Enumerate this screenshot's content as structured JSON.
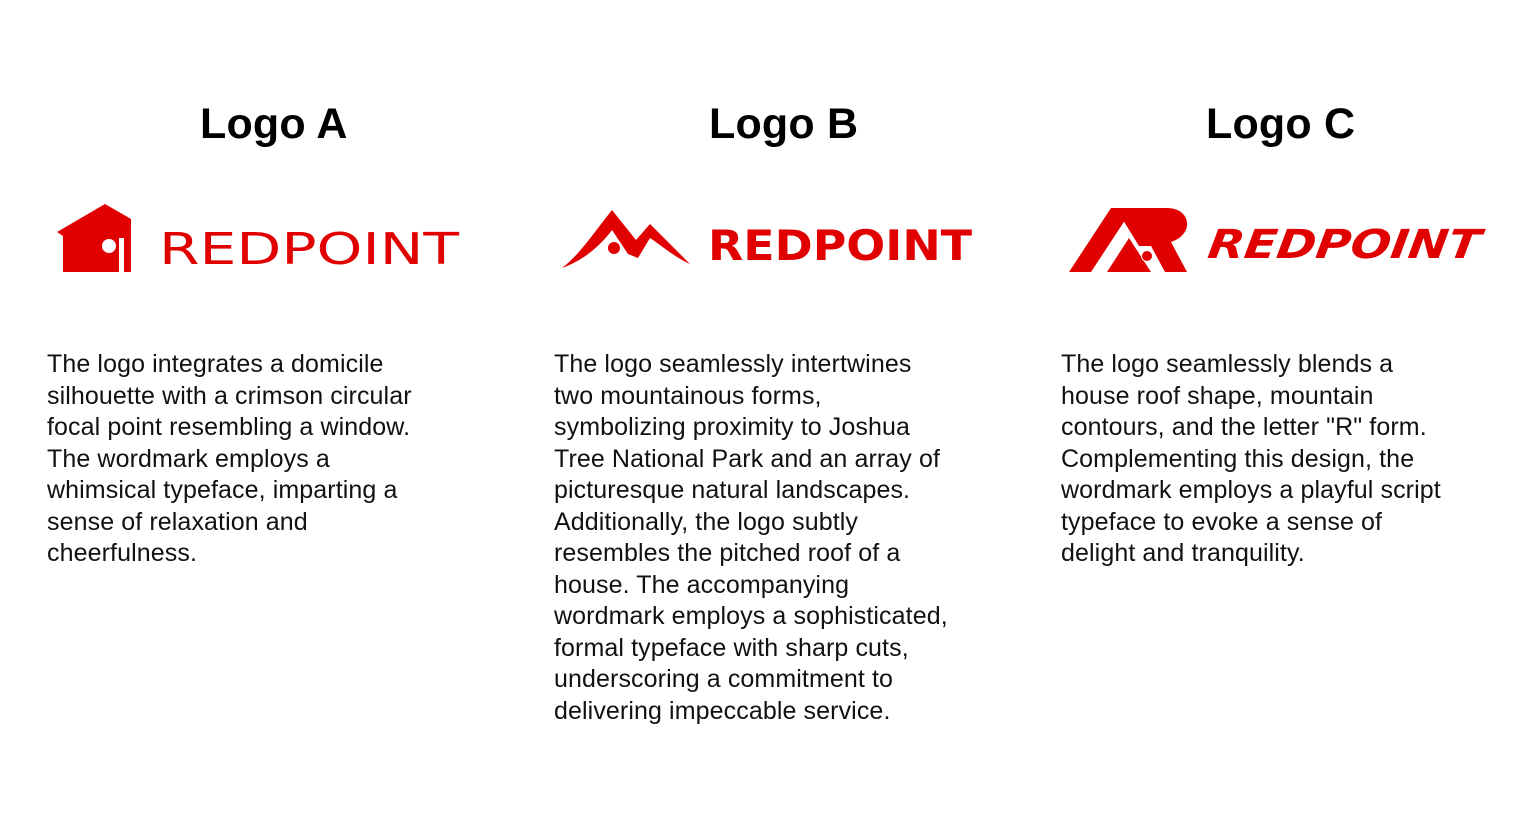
{
  "brand": {
    "accent_color": "#e00000",
    "text_color": "#111111",
    "background": "#ffffff"
  },
  "logos": [
    {
      "title": "Logo A",
      "wordmark": "REDPOINT",
      "icon": "house-icon",
      "description_lines": [
        "The logo integrates a domicile",
        "silhouette with a crimson circular",
        "focal point resembling a window.",
        "The wordmark employs a",
        "whimsical typeface, imparting a",
        "sense of relaxation and",
        "cheerfulness."
      ]
    },
    {
      "title": "Logo B",
      "wordmark": "REDPOINT",
      "icon": "mountains-icon",
      "description_lines": [
        "The logo seamlessly intertwines",
        "two mountainous forms,",
        "symbolizing proximity to Joshua",
        "Tree National Park and an array of",
        "picturesque natural landscapes.",
        "Additionally, the logo subtly",
        "resembles the pitched roof of a",
        "house. The accompanying",
        "wordmark employs a sophisticated,",
        "formal typeface with sharp cuts,",
        "underscoring a commitment to",
        "delivering impeccable service."
      ]
    },
    {
      "title": "Logo C",
      "wordmark": "REDPOINT",
      "icon": "roof-letter-r-icon",
      "description_lines": [
        "The logo seamlessly blends a",
        "house roof shape, mountain",
        "contours, and the letter \"R\" form.",
        "Complementing this design, the",
        "wordmark employs a playful script",
        "typeface to evoke a sense of",
        "delight and tranquility."
      ]
    }
  ]
}
